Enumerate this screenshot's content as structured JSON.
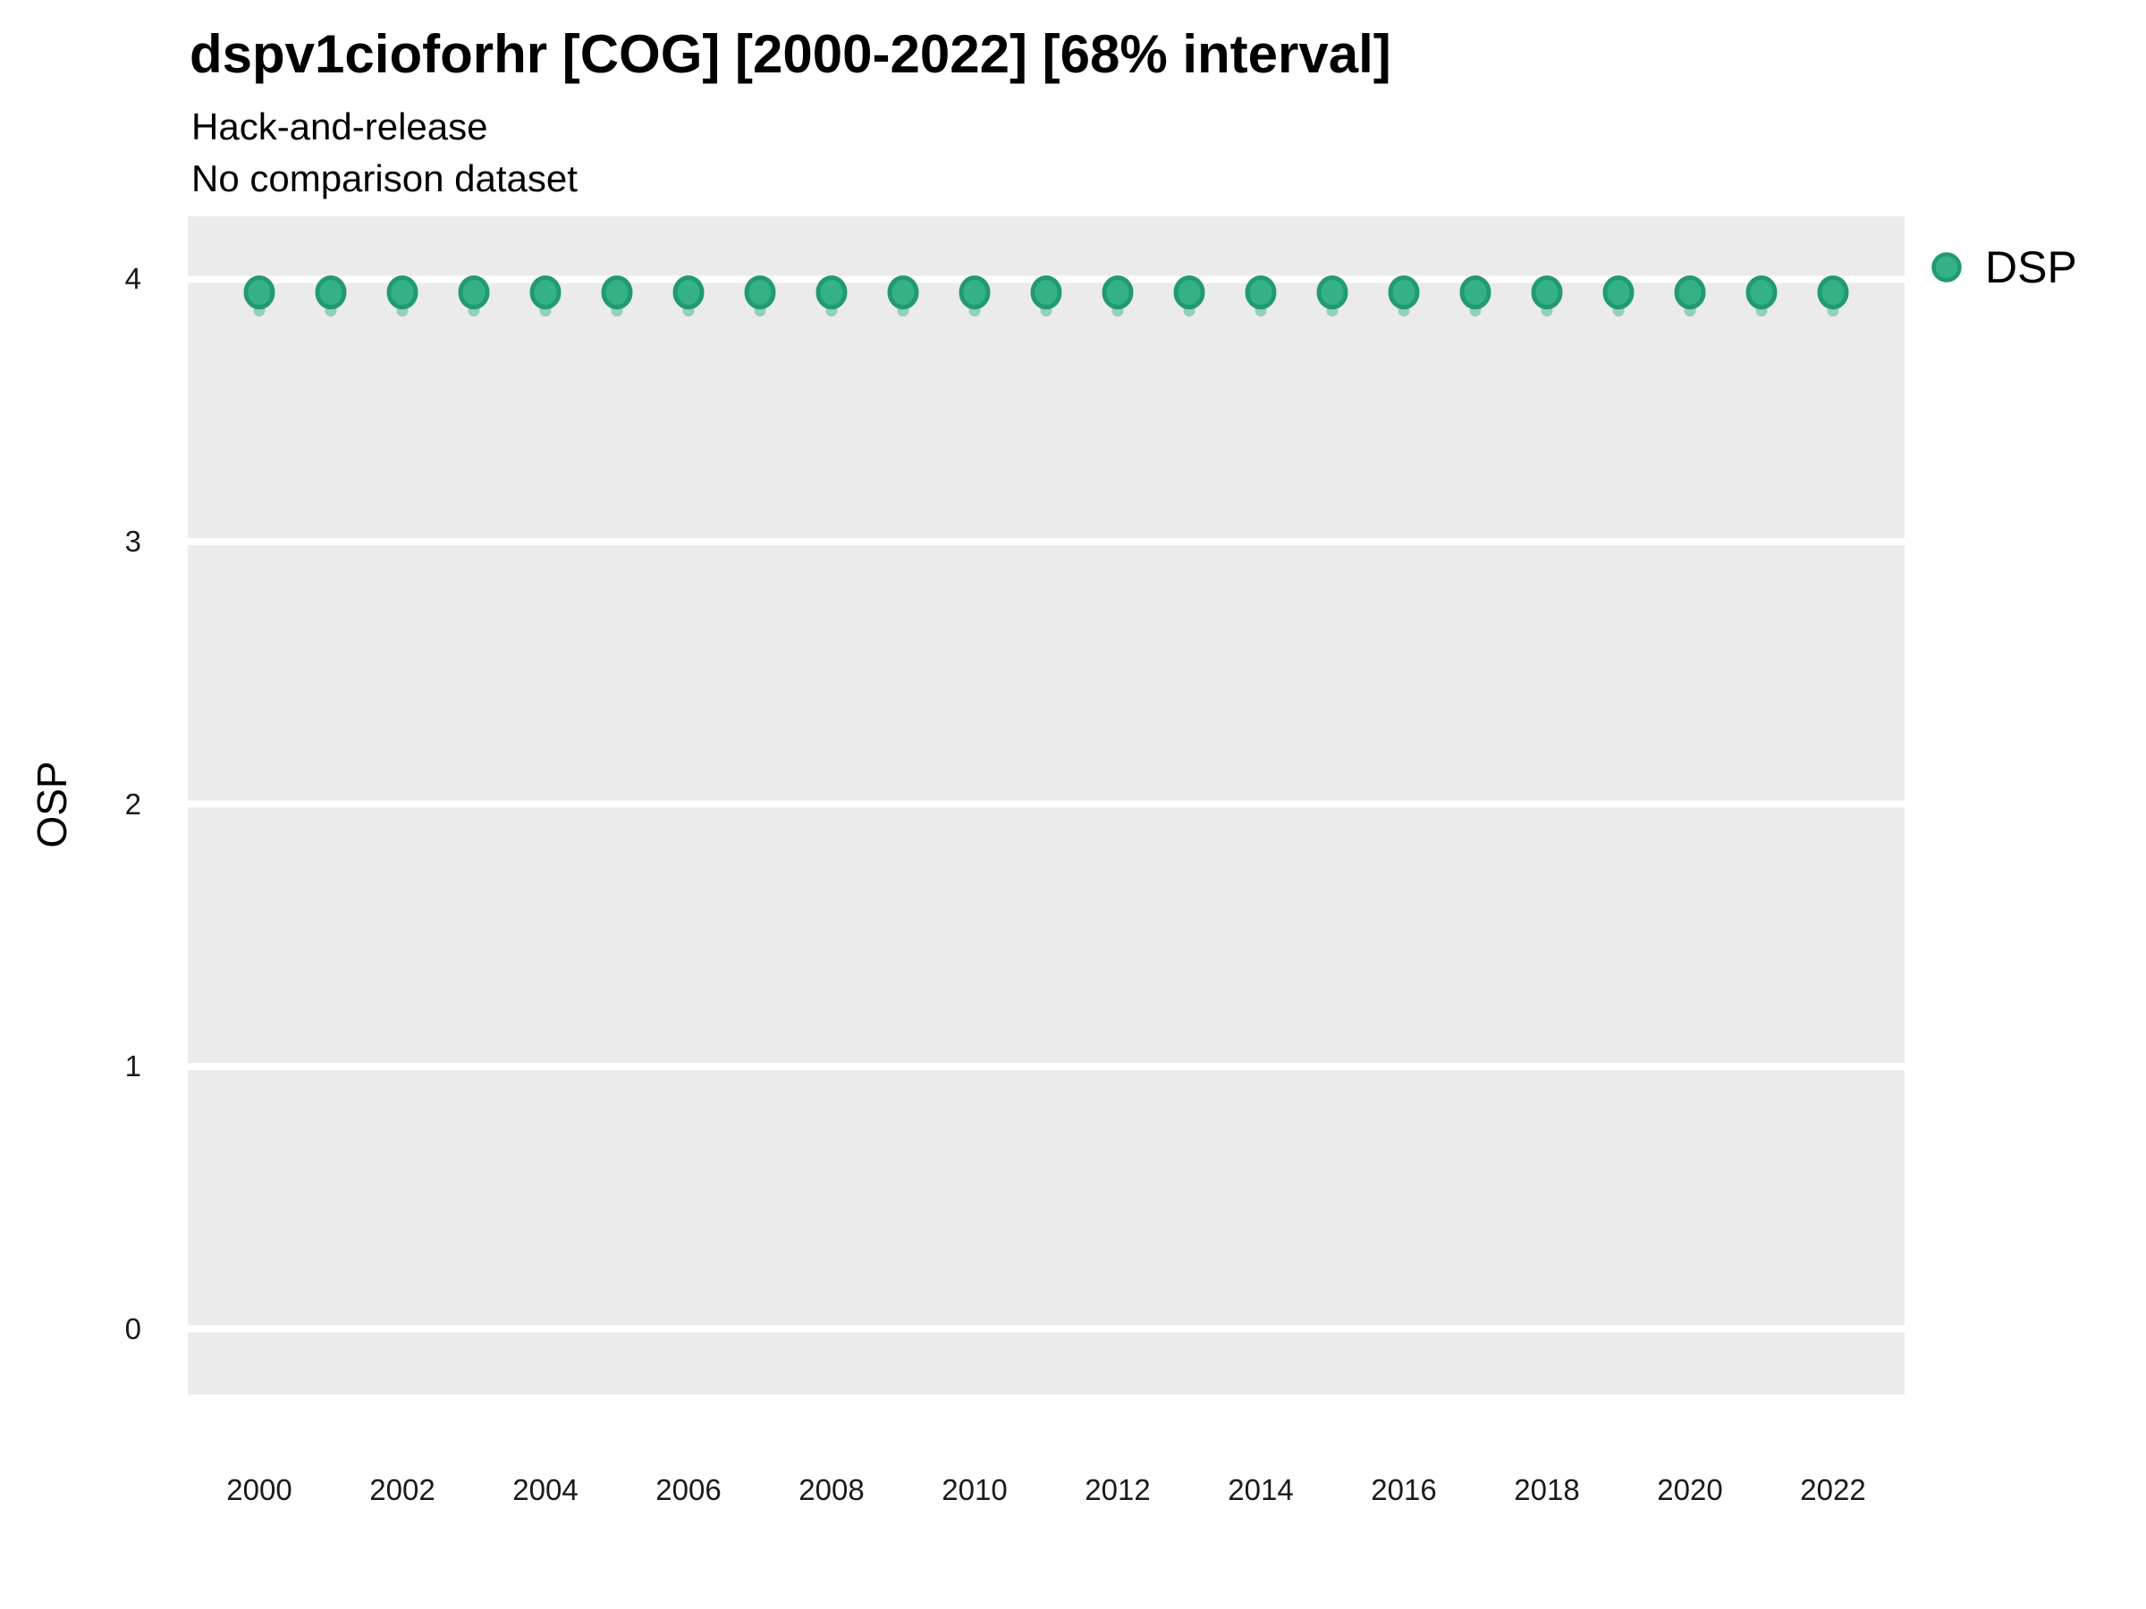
{
  "chart_data": {
    "type": "scatter",
    "title": "dspv1cioforhr [COG] [2000-2022] [68% interval]",
    "subtitle_line1": "Hack-and-release",
    "subtitle_line2": "No comparison dataset",
    "xlabel": "",
    "ylabel": "OSP",
    "x": [
      2000,
      2001,
      2002,
      2003,
      2004,
      2005,
      2006,
      2007,
      2008,
      2009,
      2010,
      2011,
      2012,
      2013,
      2014,
      2015,
      2016,
      2017,
      2018,
      2019,
      2020,
      2021,
      2022
    ],
    "series": [
      {
        "name": "DSP",
        "values": [
          3.95,
          3.95,
          3.95,
          3.95,
          3.95,
          3.95,
          3.95,
          3.95,
          3.95,
          3.95,
          3.95,
          3.95,
          3.95,
          3.95,
          3.95,
          3.95,
          3.95,
          3.95,
          3.95,
          3.95,
          3.95,
          3.95,
          3.95
        ],
        "interval_low": [
          3.88,
          3.88,
          3.88,
          3.88,
          3.88,
          3.88,
          3.88,
          3.88,
          3.88,
          3.88,
          3.88,
          3.88,
          3.88,
          3.88,
          3.88,
          3.88,
          3.88,
          3.88,
          3.88,
          3.88,
          3.88,
          3.88,
          3.88
        ],
        "interval_high": [
          3.99,
          3.99,
          3.99,
          3.99,
          3.99,
          3.99,
          3.99,
          3.99,
          3.99,
          3.99,
          3.99,
          3.99,
          3.99,
          3.99,
          3.99,
          3.99,
          3.99,
          3.99,
          3.99,
          3.99,
          3.99,
          3.99,
          3.99
        ]
      }
    ],
    "x_ticks": [
      2000,
      2002,
      2004,
      2006,
      2008,
      2010,
      2012,
      2014,
      2016,
      2018,
      2020,
      2022
    ],
    "y_ticks": [
      0,
      1,
      2,
      3,
      4
    ],
    "xlim": [
      1999,
      2023
    ],
    "ylim": [
      -0.25,
      4.24
    ],
    "grid": {
      "horizontal_major": true,
      "vertical": false,
      "color": "#FFFFFF"
    },
    "legend_position": "right",
    "interval_label": "68% interval",
    "colors": {
      "point_fill": "#35B285",
      "point_ring": "#219A72",
      "interval": "#2FAC7F",
      "interval_opacity": 0.45,
      "panel_bg": "#EBEBEB",
      "grid": "#FFFFFF"
    }
  }
}
